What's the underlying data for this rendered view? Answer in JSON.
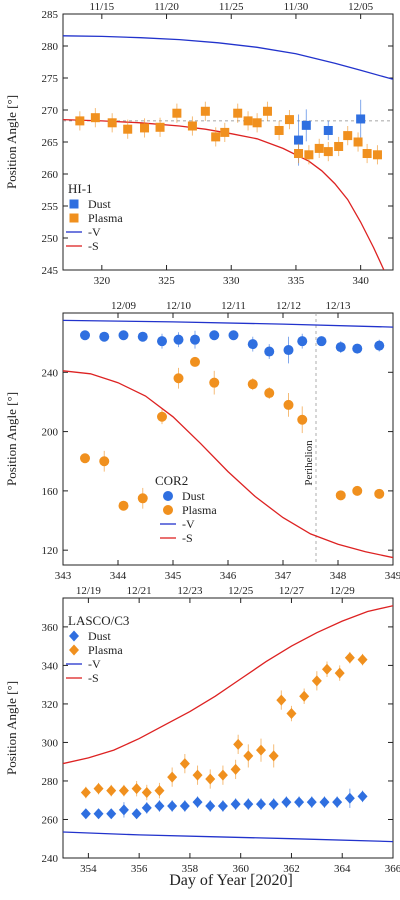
{
  "figure": {
    "xlabel": "Day of Year [2020]",
    "colors": {
      "dust": "#2f6fe0",
      "plasma": "#f0901e",
      "minus_v": "#2233cc",
      "minus_s": "#dd2222"
    }
  },
  "chart_data": [
    {
      "type": "scatter",
      "panel_label": "HI-1",
      "ylabel": "Position Angle [°]",
      "xlim": [
        317,
        342.5
      ],
      "ylim": [
        245,
        285
      ],
      "xticks": [
        320,
        325,
        330,
        335,
        340
      ],
      "yticks": [
        245,
        250,
        255,
        260,
        265,
        270,
        275,
        280,
        285
      ],
      "top_axis": {
        "labels": [
          "11/15",
          "11/20",
          "11/25",
          "11/30",
          "12/05"
        ],
        "positions": [
          320,
          325,
          330,
          335,
          340
        ]
      },
      "reference_line": {
        "y": 268.3,
        "style": "dashed"
      },
      "marker": "square",
      "legend": [
        {
          "label": "Dust",
          "kind": "dust"
        },
        {
          "label": "Plasma",
          "kind": "plasma"
        },
        {
          "label": "-V",
          "kind": "minus_v"
        },
        {
          "label": "-S",
          "kind": "minus_s"
        }
      ],
      "series": [
        {
          "name": "Dust",
          "kind": "dust",
          "points": [
            [
              335.2,
              265.3,
              4
            ],
            [
              335.8,
              267.6,
              2.5
            ],
            [
              337.5,
              266.8,
              1.5
            ],
            [
              340.0,
              268.6,
              3
            ]
          ]
        },
        {
          "name": "Plasma",
          "kind": "plasma",
          "points": [
            [
              318.3,
              268.3,
              1.5
            ],
            [
              319.5,
              268.8,
              1.5
            ],
            [
              320.8,
              268.0,
              1.5
            ],
            [
              322.0,
              267.0,
              1.5
            ],
            [
              323.3,
              267.2,
              1.5
            ],
            [
              324.5,
              267.3,
              1.5
            ],
            [
              325.8,
              269.5,
              1.5
            ],
            [
              327.0,
              267.5,
              1.5
            ],
            [
              328.0,
              269.8,
              1.5
            ],
            [
              328.8,
              265.8,
              1.5
            ],
            [
              329.5,
              266.5,
              1.5
            ],
            [
              330.5,
              269.5,
              1.5
            ],
            [
              331.3,
              268.3,
              1.5
            ],
            [
              332.0,
              268.0,
              1.5
            ],
            [
              332.8,
              269.8,
              1.5
            ],
            [
              333.7,
              266.8,
              1.5
            ],
            [
              334.5,
              268.5,
              1.5
            ],
            [
              335.2,
              263.2,
              1.5
            ],
            [
              336.0,
              263.0,
              1.5
            ],
            [
              336.8,
              264.0,
              1.5
            ],
            [
              337.5,
              263.5,
              1.5
            ],
            [
              338.3,
              264.3,
              1.5
            ],
            [
              339.0,
              266.0,
              1.5
            ],
            [
              339.8,
              265.0,
              1.5
            ],
            [
              340.5,
              263.2,
              1.5
            ],
            [
              341.3,
              263.0,
              1.5
            ]
          ]
        }
      ],
      "curves": [
        {
          "name": "-V",
          "kind": "minus_v",
          "points": [
            [
              317,
              281.6
            ],
            [
              320,
              281.5
            ],
            [
              323,
              281.3
            ],
            [
              326,
              281.0
            ],
            [
              329,
              280.5
            ],
            [
              332,
              279.8
            ],
            [
              335,
              278.8
            ],
            [
              338,
              277.3
            ],
            [
              340,
              276.2
            ],
            [
              342.5,
              274.8
            ]
          ]
        },
        {
          "name": "-S",
          "kind": "minus_s",
          "points": [
            [
              317,
              268.5
            ],
            [
              320,
              268.3
            ],
            [
              323,
              268.0
            ],
            [
              326,
              267.5
            ],
            [
              328,
              267.0
            ],
            [
              330,
              266.3
            ],
            [
              332,
              265.5
            ],
            [
              334,
              264.0
            ],
            [
              336,
              262.0
            ],
            [
              337,
              260.5
            ],
            [
              338,
              258.5
            ],
            [
              339,
              256.0
            ],
            [
              340,
              252.5
            ],
            [
              341,
              248.5
            ],
            [
              341.8,
              245
            ]
          ]
        }
      ]
    },
    {
      "type": "scatter",
      "panel_label": "COR2",
      "ylabel": "Position Angle [°]",
      "xlim": [
        343,
        349
      ],
      "ylim": [
        110,
        280
      ],
      "xticks": [
        343,
        344,
        345,
        346,
        347,
        348,
        349
      ],
      "yticks": [
        120,
        160,
        200,
        240,
        280
      ],
      "ytick_labels": [
        "120",
        "160",
        "200",
        "240",
        ""
      ],
      "top_axis": {
        "labels": [
          "12/09",
          "12/10",
          "12/11",
          "12/12",
          "12/13"
        ],
        "positions": [
          344.1,
          345.1,
          346.1,
          347.1,
          348.0
        ]
      },
      "vline": {
        "x": 347.6,
        "label": "Perihelion"
      },
      "marker": "circle",
      "legend": [
        {
          "label": "Dust",
          "kind": "dust"
        },
        {
          "label": "Plasma",
          "kind": "plasma"
        },
        {
          "label": "-V",
          "kind": "minus_v"
        },
        {
          "label": "-S",
          "kind": "minus_s"
        }
      ],
      "series": [
        {
          "name": "Dust",
          "kind": "dust",
          "points": [
            [
              343.4,
              265,
              3
            ],
            [
              343.75,
              264,
              3
            ],
            [
              344.1,
              265,
              3
            ],
            [
              344.45,
              264,
              3
            ],
            [
              344.8,
              261,
              5
            ],
            [
              345.1,
              262,
              5
            ],
            [
              345.4,
              262,
              6
            ],
            [
              345.75,
              265,
              3
            ],
            [
              346.1,
              265,
              3
            ],
            [
              346.45,
              259,
              5
            ],
            [
              346.75,
              254,
              5
            ],
            [
              347.1,
              255,
              9
            ],
            [
              347.35,
              261,
              5
            ],
            [
              347.7,
              261,
              3
            ],
            [
              348.05,
              257,
              4
            ],
            [
              348.35,
              256,
              3
            ],
            [
              348.75,
              258,
              4
            ]
          ]
        },
        {
          "name": "Plasma",
          "kind": "plasma",
          "points": [
            [
              343.4,
              182,
              0
            ],
            [
              343.75,
              180,
              7
            ],
            [
              344.1,
              150,
              0
            ],
            [
              344.45,
              155,
              7
            ],
            [
              344.8,
              210,
              5
            ],
            [
              345.1,
              236,
              7
            ],
            [
              345.4,
              247,
              0
            ],
            [
              345.75,
              233,
              8
            ],
            [
              346.45,
              232,
              4
            ],
            [
              346.75,
              226,
              4
            ],
            [
              347.1,
              218,
              8
            ],
            [
              347.35,
              208,
              9
            ],
            [
              348.05,
              157,
              0
            ],
            [
              348.35,
              160,
              0
            ],
            [
              348.75,
              158,
              0
            ]
          ]
        }
      ],
      "curves": [
        {
          "name": "-V",
          "kind": "minus_v",
          "points": [
            [
              343,
              275
            ],
            [
              345,
              274
            ],
            [
              347,
              272.5
            ],
            [
              349,
              270.5
            ]
          ]
        },
        {
          "name": "-S",
          "kind": "minus_s",
          "points": [
            [
              343,
              241
            ],
            [
              343.5,
              239
            ],
            [
              344,
              233
            ],
            [
              344.5,
              224
            ],
            [
              345,
              210
            ],
            [
              345.5,
              192
            ],
            [
              346,
              173
            ],
            [
              346.5,
              156
            ],
            [
              347,
              142
            ],
            [
              347.5,
              131
            ],
            [
              348,
              124
            ],
            [
              348.5,
              119
            ],
            [
              349,
              115
            ]
          ]
        }
      ]
    },
    {
      "type": "scatter",
      "panel_label": "LASCO/C3",
      "ylabel": "Position Angle [°]",
      "xlim": [
        353,
        366
      ],
      "ylim": [
        240,
        375
      ],
      "xticks": [
        354,
        356,
        358,
        360,
        362,
        364,
        366
      ],
      "yticks": [
        240,
        260,
        280,
        300,
        320,
        340,
        360
      ],
      "top_axis": {
        "labels": [
          "12/19",
          "12/21",
          "12/23",
          "12/25",
          "12/27",
          "12/29"
        ],
        "positions": [
          354,
          356,
          358,
          360,
          362,
          364
        ]
      },
      "marker": "diamond",
      "legend": [
        {
          "label": "Dust",
          "kind": "dust"
        },
        {
          "label": "Plasma",
          "kind": "plasma"
        },
        {
          "label": "-V",
          "kind": "minus_v"
        },
        {
          "label": "-S",
          "kind": "minus_s"
        }
      ],
      "series": [
        {
          "name": "Dust",
          "kind": "dust",
          "points": [
            [
              353.9,
              263,
              2
            ],
            [
              354.4,
              263,
              2
            ],
            [
              354.9,
              263,
              2
            ],
            [
              355.4,
              265,
              4
            ],
            [
              355.9,
              263,
              2
            ],
            [
              356.3,
              266,
              3
            ],
            [
              356.8,
              267,
              3
            ],
            [
              357.3,
              267,
              3
            ],
            [
              357.8,
              267,
              3
            ],
            [
              358.3,
              269,
              3
            ],
            [
              358.8,
              267,
              3
            ],
            [
              359.3,
              267,
              3
            ],
            [
              359.8,
              268,
              3
            ],
            [
              360.3,
              268,
              3
            ],
            [
              360.8,
              268,
              3
            ],
            [
              361.3,
              268,
              3
            ],
            [
              361.8,
              269,
              3
            ],
            [
              362.3,
              269,
              3
            ],
            [
              362.8,
              269,
              3
            ],
            [
              363.3,
              269,
              3
            ],
            [
              363.8,
              269,
              3
            ],
            [
              364.3,
              271,
              5
            ],
            [
              364.8,
              272,
              3
            ]
          ]
        },
        {
          "name": "Plasma",
          "kind": "plasma",
          "points": [
            [
              353.9,
              274,
              3
            ],
            [
              354.4,
              276,
              3
            ],
            [
              354.9,
              275,
              3
            ],
            [
              355.4,
              275,
              3
            ],
            [
              355.9,
              276,
              4
            ],
            [
              356.3,
              274,
              4
            ],
            [
              356.8,
              275,
              4
            ],
            [
              357.3,
              282,
              5
            ],
            [
              357.8,
              289,
              5
            ],
            [
              358.3,
              283,
              5
            ],
            [
              358.8,
              281,
              5
            ],
            [
              359.3,
              283,
              5
            ],
            [
              359.8,
              286,
              5
            ],
            [
              359.9,
              299,
              5
            ],
            [
              360.3,
              293,
              6
            ],
            [
              360.8,
              296,
              6
            ],
            [
              361.3,
              293,
              6
            ],
            [
              361.6,
              322,
              5
            ],
            [
              362.0,
              315,
              4
            ],
            [
              362.5,
              324,
              4
            ],
            [
              363.0,
              332,
              5
            ],
            [
              363.4,
              338,
              4
            ],
            [
              363.9,
              336,
              4
            ],
            [
              364.3,
              344,
              3
            ],
            [
              364.8,
              343,
              3
            ]
          ]
        }
      ],
      "curves": [
        {
          "name": "-V",
          "kind": "minus_v",
          "points": [
            [
              353,
              253.5
            ],
            [
              356,
              252
            ],
            [
              359,
              251
            ],
            [
              362,
              250
            ],
            [
              366,
              248.5
            ]
          ]
        },
        {
          "name": "-S",
          "kind": "minus_s",
          "points": [
            [
              353,
              289
            ],
            [
              354,
              292
            ],
            [
              355,
              296
            ],
            [
              356,
              302
            ],
            [
              357,
              309
            ],
            [
              358,
              316
            ],
            [
              359,
              324
            ],
            [
              360,
              333
            ],
            [
              361,
              342
            ],
            [
              362,
              350
            ],
            [
              363,
              357
            ],
            [
              364,
              363
            ],
            [
              365,
              368
            ],
            [
              366,
              371
            ]
          ]
        }
      ]
    }
  ]
}
